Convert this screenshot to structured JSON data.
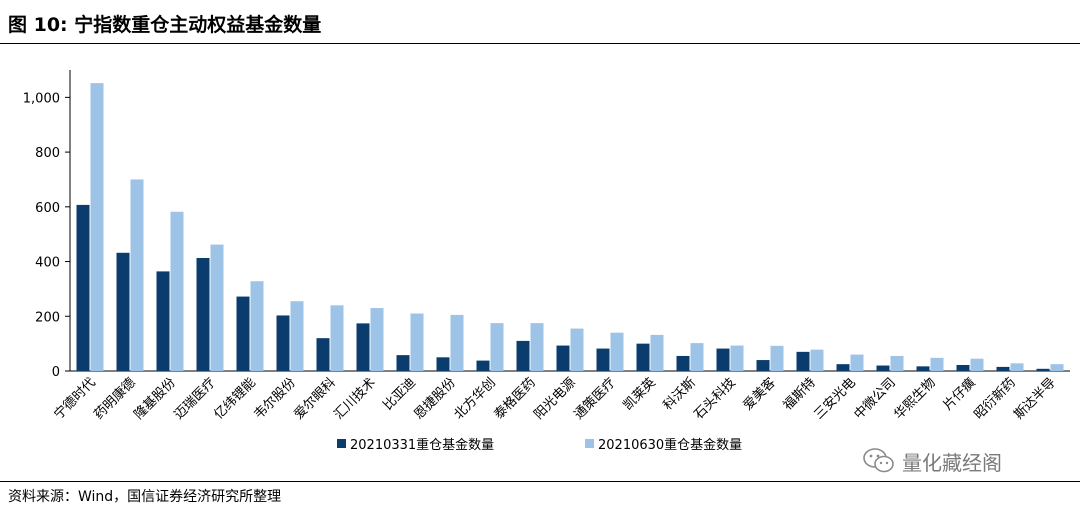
{
  "header": {
    "title": "图 10:  宁指数重仓主动权益基金数量"
  },
  "footer": {
    "source": "资料来源：Wind，国信证券经济研究所整理"
  },
  "watermark": {
    "text": "量化藏经阁",
    "icon": "wechat-icon"
  },
  "colors": {
    "series1": "#0a3d6e",
    "series2": "#9dc3e6",
    "axis": "#000000"
  },
  "chart_data": {
    "type": "bar",
    "title": "",
    "xlabel": "",
    "ylabel": "",
    "ylim": [
      0,
      1100
    ],
    "yticks": [
      0,
      200,
      400,
      600,
      800,
      1000
    ],
    "ytick_labels": [
      "0",
      "200",
      "400",
      "600",
      "800",
      "1,000"
    ],
    "grid": false,
    "legend_position": "bottom",
    "categories": [
      "宁德时代",
      "药明康德",
      "隆基股份",
      "迈瑞医疗",
      "亿纬锂能",
      "韦尔股份",
      "爱尔眼科",
      "汇川技术",
      "比亚迪",
      "恩捷股份",
      "北方华创",
      "泰格医药",
      "阳光电源",
      "通策医疗",
      "凯莱英",
      "科沃斯",
      "石头科技",
      "爱美客",
      "福斯特",
      "三安光电",
      "中微公司",
      "华熙生物",
      "片仔癀",
      "昭衍新药",
      "斯达半导"
    ],
    "series": [
      {
        "name": "20210331重仓基金数量",
        "values": [
          607,
          432,
          364,
          413,
          272,
          203,
          120,
          174,
          58,
          50,
          38,
          110,
          93,
          82,
          100,
          55,
          82,
          40,
          70,
          25,
          20,
          17,
          22,
          15,
          8
        ]
      },
      {
        "name": "20210630重仓基金数量",
        "values": [
          1052,
          700,
          582,
          462,
          328,
          255,
          240,
          230,
          210,
          205,
          175,
          175,
          155,
          140,
          132,
          102,
          93,
          92,
          78,
          60,
          55,
          48,
          45,
          28,
          25
        ]
      }
    ]
  }
}
